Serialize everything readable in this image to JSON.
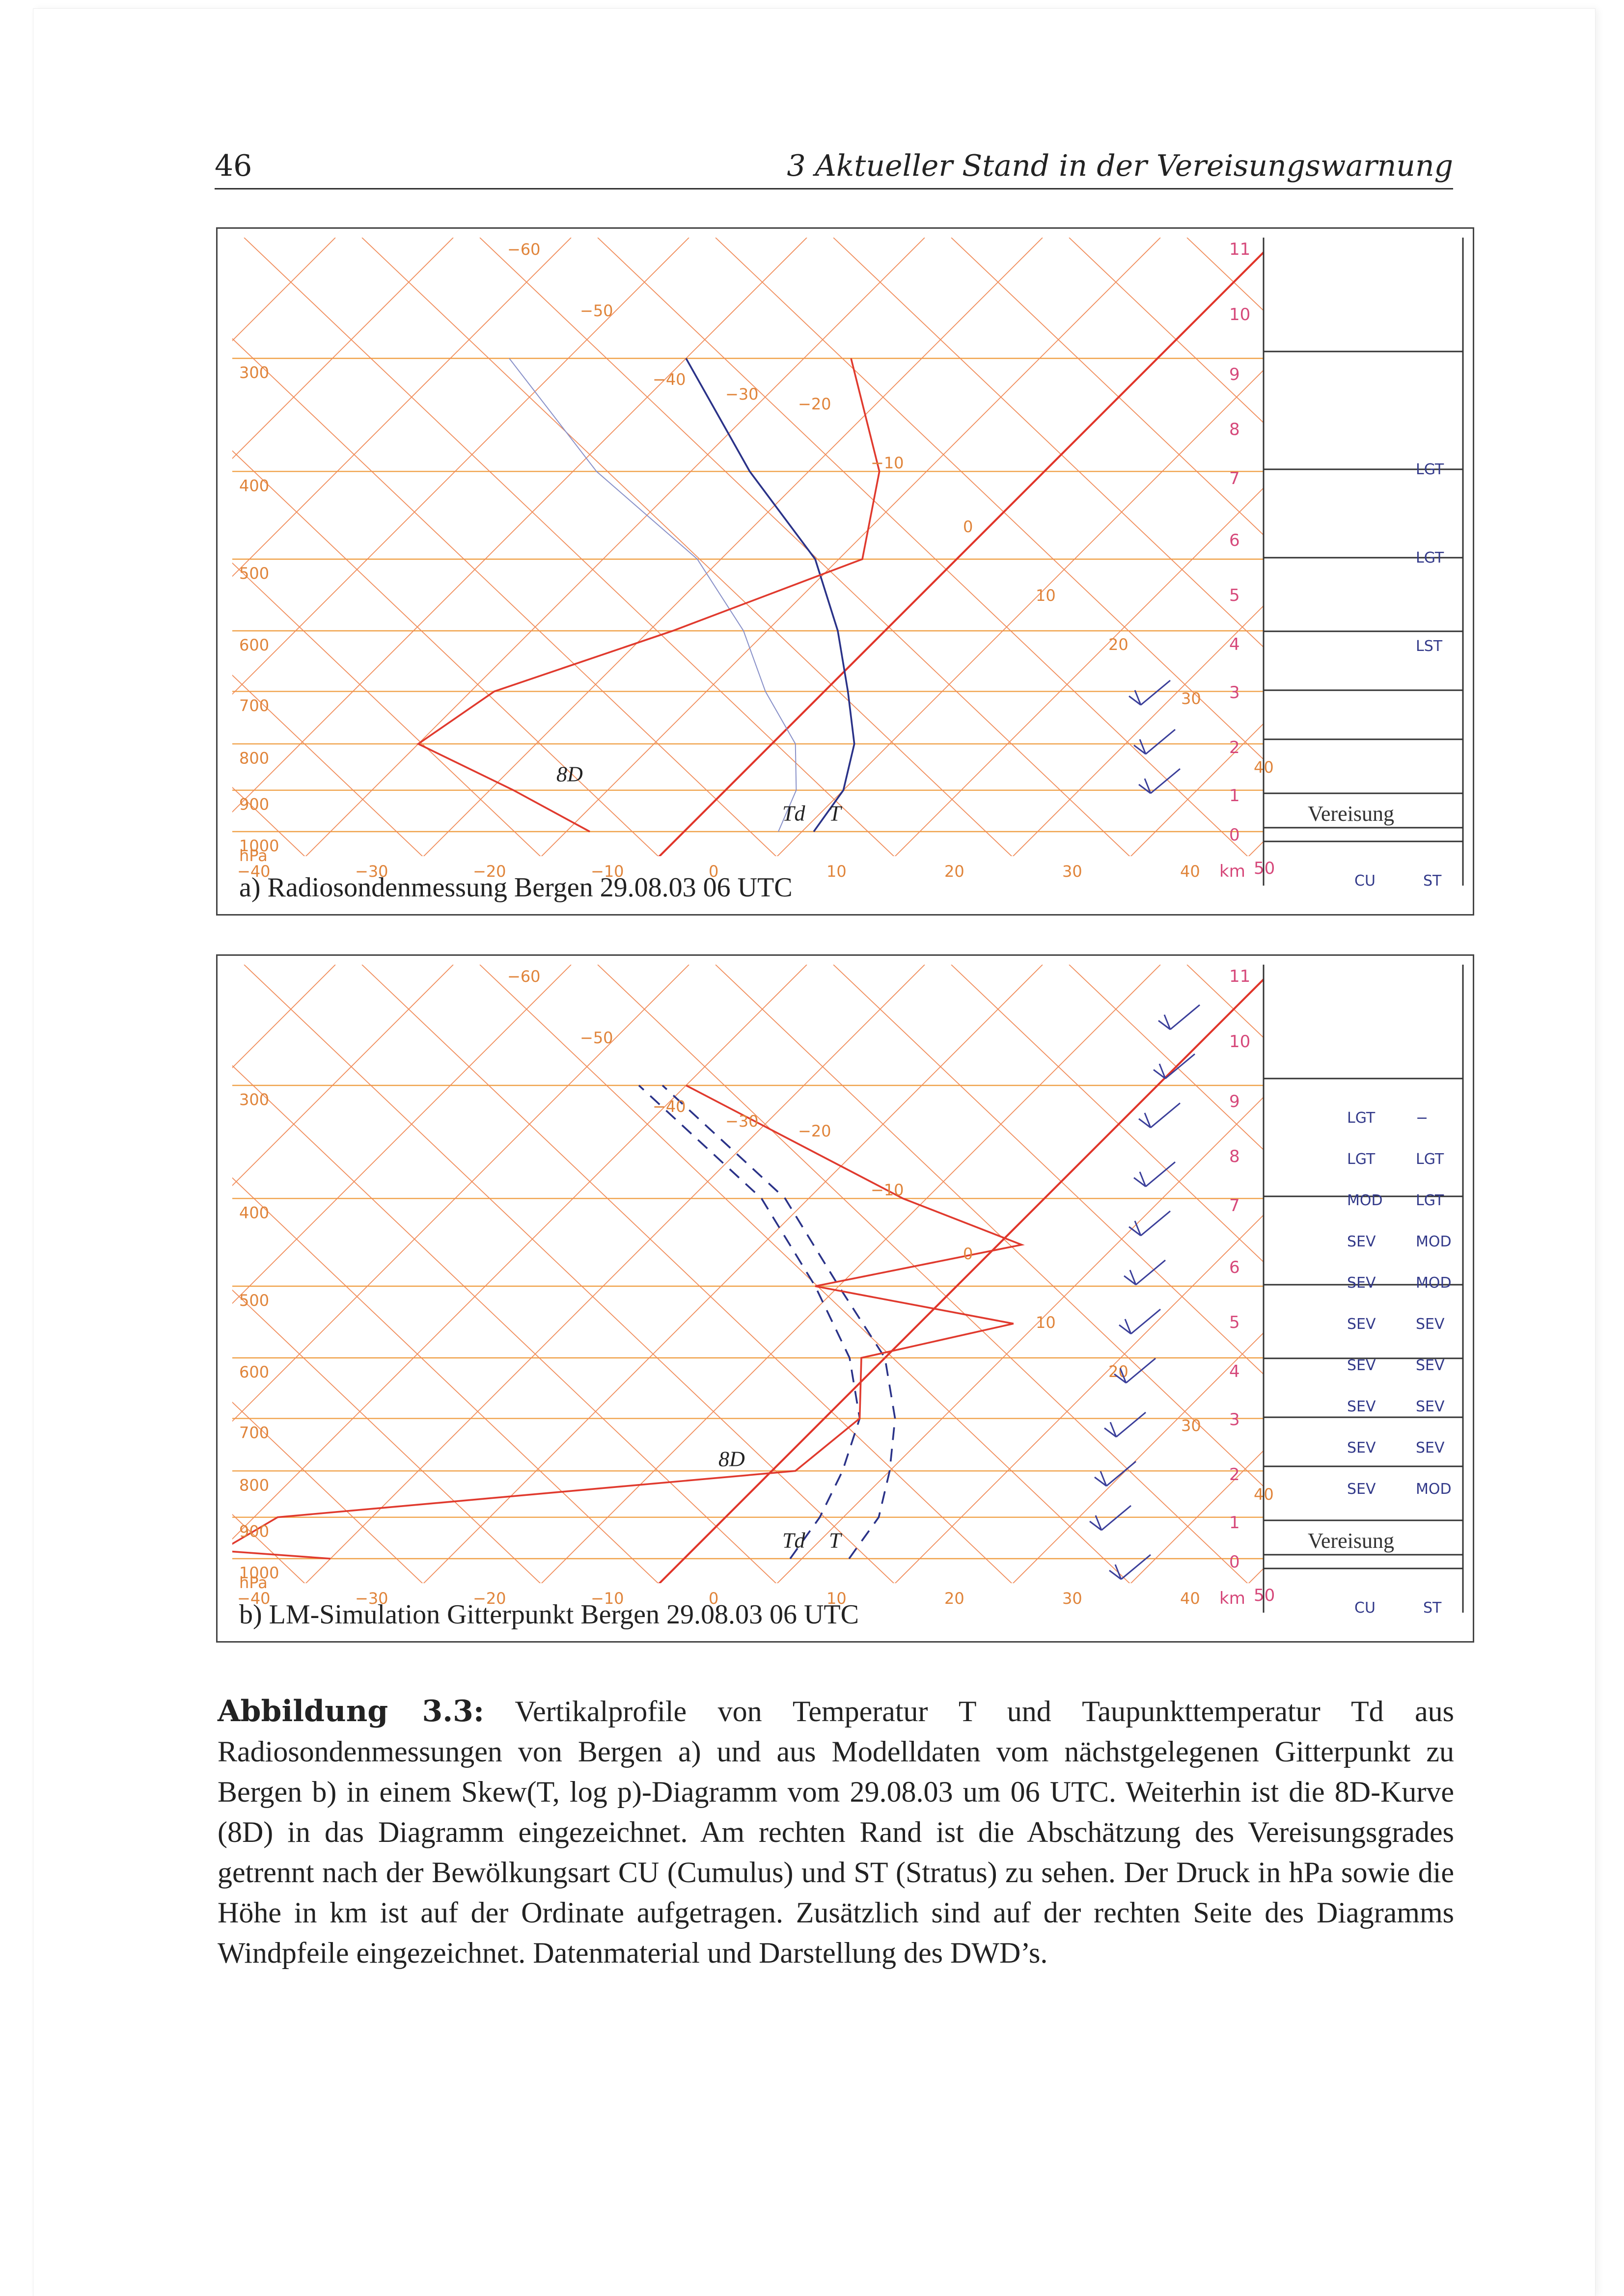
{
  "page": {
    "number": "46",
    "chapter_title": "3 Aktueller Stand in der Vereisungswarnung"
  },
  "figures": [
    {
      "caption": "a) Radiosondenmessung Bergen 29.08.03 06 UTC",
      "pressure_ticks": [
        "300",
        "400",
        "500",
        "600",
        "700",
        "800",
        "900",
        "1000"
      ],
      "pressure_unit": "hPa",
      "temp_ticks": [
        "−40",
        "−30",
        "−20",
        "−10",
        "0",
        "10",
        "20",
        "30",
        "40"
      ],
      "height_ticks": [
        "0",
        "1",
        "2",
        "3",
        "4",
        "5",
        "6",
        "7",
        "8",
        "9",
        "10",
        "11"
      ],
      "height_unit": "km",
      "height_end": "50",
      "isotherm_labels": [
        "−60",
        "−50",
        "−40",
        "−30",
        "−20",
        "−10",
        "0",
        "10",
        "20",
        "30",
        "40"
      ],
      "curve_labels": {
        "td": "Td",
        "t": "T",
        "d8": "8D"
      },
      "icing": {
        "title": "Vereisung",
        "col_cu": "CU",
        "col_st": "ST",
        "entries": [
          {
            "cu": "",
            "st": "LGT"
          },
          {
            "cu": "",
            "st": "LGT"
          },
          {
            "cu": "",
            "st": "LST"
          }
        ]
      }
    },
    {
      "caption": "b) LM-Simulation Gitterpunkt Bergen 29.08.03 06 UTC",
      "pressure_ticks": [
        "300",
        "400",
        "500",
        "600",
        "700",
        "800",
        "900",
        "1000"
      ],
      "pressure_unit": "hPa",
      "temp_ticks": [
        "−40",
        "−30",
        "−20",
        "−10",
        "0",
        "10",
        "20",
        "30",
        "40"
      ],
      "height_ticks": [
        "0",
        "1",
        "2",
        "3",
        "4",
        "5",
        "6",
        "7",
        "8",
        "9",
        "10",
        "11"
      ],
      "height_unit": "km",
      "height_end": "50",
      "isotherm_labels": [
        "−60",
        "−50",
        "−40",
        "−30",
        "−20",
        "−10",
        "0",
        "10",
        "20",
        "30",
        "40"
      ],
      "curve_labels": {
        "td": "Td",
        "t": "T",
        "d8": "8D"
      },
      "icing": {
        "title": "Vereisung",
        "col_cu": "CU",
        "col_st": "ST",
        "entries": [
          {
            "cu": "LGT",
            "st": "−"
          },
          {
            "cu": "LGT",
            "st": "LGT"
          },
          {
            "cu": "MOD",
            "st": "LGT"
          },
          {
            "cu": "SEV",
            "st": "MOD"
          },
          {
            "cu": "SEV",
            "st": "MOD"
          },
          {
            "cu": "SEV",
            "st": "SEV"
          },
          {
            "cu": "SEV",
            "st": "SEV"
          },
          {
            "cu": "SEV",
            "st": "SEV"
          },
          {
            "cu": "SEV",
            "st": "SEV"
          },
          {
            "cu": "SEV",
            "st": "MOD"
          }
        ]
      }
    }
  ],
  "caption": {
    "label": "Abbildung 3.3:",
    "text": "Vertikalprofile von Temperatur T und Taupunkttemperatur Td aus Radiosondenmessungen von Bergen a) und aus Modelldaten vom nächstgelegenen Gitterpunkt zu Bergen b) in einem Skew(T, log p)-Diagramm vom 29.08.03 um 06 UTC. Weiterhin ist die 8D-Kurve (8D) in das Diagramm eingezeichnet. Am rechten Rand ist die Abschätzung des Vereisungsgrades getrennt nach der Bewölkungsart CU (Cumulus) und ST (Stratus) zu sehen. Der Druck in hPa sowie die Höhe in km ist auf der Ordinate aufgetragen. Zusätzlich sind auf der rechten Seite des Diagramms Windpfeile eingezeichnet. Datenmaterial und Darstellung des DWD’s."
  },
  "chart_data": [
    {
      "type": "line",
      "subtitle": "a) Radiosondenmessung Bergen 29.08.03 06 UTC",
      "xlabel": "",
      "ylabel": "hPa",
      "x_axis_ticks": [
        -40,
        -30,
        -20,
        -10,
        0,
        10,
        20,
        30,
        40
      ],
      "y_axis_ticks": [
        300,
        400,
        500,
        600,
        700,
        800,
        900,
        1000
      ],
      "height_km_ticks": [
        0,
        1,
        2,
        3,
        4,
        5,
        6,
        7,
        8,
        9,
        10,
        11
      ],
      "series": [
        {
          "name": "T",
          "style": "solid",
          "color": "#2a3288",
          "points": [
            [
              1000,
              11
            ],
            [
              900,
              10
            ],
            [
              800,
              7
            ],
            [
              700,
              2
            ],
            [
              600,
              -4
            ],
            [
              500,
              -12
            ],
            [
              400,
              -25
            ],
            [
              300,
              -40
            ]
          ]
        },
        {
          "name": "Td",
          "style": "solid",
          "color": "#8890c8",
          "points": [
            [
              1000,
              8
            ],
            [
              900,
              6
            ],
            [
              800,
              2
            ],
            [
              700,
              -5
            ],
            [
              600,
              -12
            ],
            [
              500,
              -22
            ],
            [
              400,
              -38
            ],
            [
              300,
              -55
            ]
          ]
        },
        {
          "name": "8D",
          "style": "solid",
          "color": "#e03a2e",
          "points": [
            [
              1000,
              -8
            ],
            [
              900,
              -18
            ],
            [
              800,
              -30
            ],
            [
              700,
              -28
            ],
            [
              600,
              -18
            ],
            [
              500,
              -8
            ],
            [
              400,
              -14
            ],
            [
              300,
              -26
            ]
          ]
        }
      ]
    },
    {
      "type": "line",
      "subtitle": "b) LM-Simulation Gitterpunkt Bergen 29.08.03 06 UTC",
      "xlabel": "",
      "ylabel": "hPa",
      "x_axis_ticks": [
        -40,
        -30,
        -20,
        -10,
        0,
        10,
        20,
        30,
        40
      ],
      "y_axis_ticks": [
        300,
        400,
        500,
        600,
        700,
        800,
        900,
        1000
      ],
      "height_km_ticks": [
        0,
        1,
        2,
        3,
        4,
        5,
        6,
        7,
        8,
        9,
        10,
        11
      ],
      "series": [
        {
          "name": "T",
          "style": "dashed",
          "color": "#2a3288",
          "points": [
            [
              1000,
              14
            ],
            [
              900,
              13
            ],
            [
              800,
              10
            ],
            [
              700,
              6
            ],
            [
              600,
              0
            ],
            [
              500,
              -10
            ],
            [
              400,
              -22
            ],
            [
              300,
              -42
            ]
          ]
        },
        {
          "name": "Td",
          "style": "dashed",
          "color": "#2a3288",
          "points": [
            [
              1000,
              9
            ],
            [
              900,
              8
            ],
            [
              800,
              6
            ],
            [
              700,
              3
            ],
            [
              600,
              -3
            ],
            [
              500,
              -12
            ],
            [
              400,
              -24
            ],
            [
              300,
              -44
            ]
          ]
        },
        {
          "name": "8D",
          "style": "solid",
          "color": "#e03a2e",
          "points": [
            [
              1000,
              -30
            ],
            [
              980,
              -40
            ],
            [
              900,
              -38
            ],
            [
              800,
              2
            ],
            [
              700,
              3
            ],
            [
              600,
              -2
            ],
            [
              550,
              8
            ],
            [
              500,
              -12
            ],
            [
              450,
              2
            ],
            [
              400,
              -12
            ],
            [
              300,
              -40
            ]
          ]
        }
      ]
    }
  ]
}
